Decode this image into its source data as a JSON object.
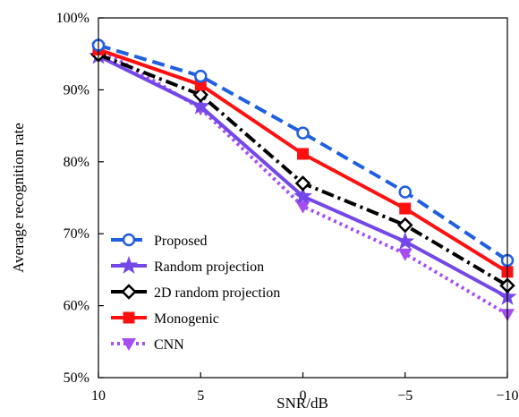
{
  "chart_data": {
    "type": "line",
    "title": "",
    "xlabel": "SNR/dB",
    "ylabel": "Average recognition rate",
    "x": [
      10,
      5,
      0,
      -5,
      -10
    ],
    "x_tick_labels": [
      "10",
      "5",
      "0",
      "−5",
      "−10"
    ],
    "xlim": [
      10,
      -10
    ],
    "ylim": [
      0.5,
      1.0
    ],
    "y_ticks": [
      0.5,
      0.6,
      0.7,
      0.8,
      0.9,
      1.0
    ],
    "y_tick_labels": [
      "50%",
      "60%",
      "70%",
      "80%",
      "90%",
      "100%"
    ],
    "grid": false,
    "legend_position": "bottom-left",
    "series": [
      {
        "name": "Proposed",
        "values": [
          0.962,
          0.919,
          0.84,
          0.758,
          0.663
        ],
        "color": "#1f5fe0",
        "line_style": "dashed",
        "marker": "circle-open"
      },
      {
        "name": "Random projection",
        "values": [
          0.947,
          0.877,
          0.752,
          0.689,
          0.612
        ],
        "color": "#7448e8",
        "line_style": "solid",
        "marker": "star"
      },
      {
        "name": "2D random projection",
        "values": [
          0.949,
          0.893,
          0.77,
          0.712,
          0.628
        ],
        "color": "#000000",
        "line_style": "dash-dot",
        "marker": "diamond-open"
      },
      {
        "name": "Monogenic",
        "values": [
          0.956,
          0.907,
          0.811,
          0.735,
          0.647
        ],
        "color": "#ff1010",
        "line_style": "solid",
        "marker": "square"
      },
      {
        "name": "CNN",
        "values": [
          0.958,
          0.874,
          0.738,
          0.672,
          0.588
        ],
        "color": "#a64ef0",
        "line_style": "dotted",
        "marker": "triangle-down"
      }
    ]
  }
}
